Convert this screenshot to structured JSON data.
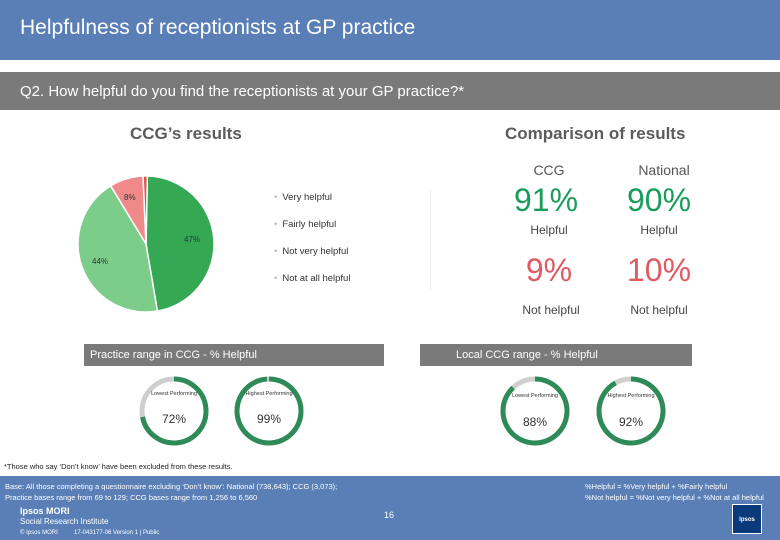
{
  "header": {
    "title": "Helpfulness of receptionists at GP practice",
    "question": "Q2. How helpful do you find the receptionists at your GP practice?*"
  },
  "left_section": {
    "heading": "CCG’s results"
  },
  "right_section": {
    "heading": "Comparison of results",
    "col_ccg": "CCG",
    "col_national": "National",
    "helpful_ccg": "91%",
    "helpful_national": "90%",
    "helpful_label": "Helpful",
    "not_helpful_ccg": "9%",
    "not_helpful_national": "10%",
    "not_helpful_label": "Not helpful"
  },
  "chart_data": {
    "type": "pie",
    "style": "donut",
    "categories": [
      "Very helpful",
      "Fairly helpful",
      "Not very helpful",
      "Not at all helpful"
    ],
    "values": [
      47,
      44,
      8,
      1
    ],
    "slice_labels": [
      "47%",
      "44%",
      "8%",
      ""
    ],
    "colors": [
      "#34a853",
      "#7ccc8a",
      "#f08a8a",
      "#d9534f"
    ],
    "legend_placement": "right"
  },
  "practice_range": {
    "label": "Practice range in CCG - % Helpful",
    "lowest_label": "Lowest Performing",
    "lowest_value": "72%",
    "lowest_fraction": 0.72,
    "highest_label": "Highest Performing",
    "highest_value": "99%",
    "highest_fraction": 0.99
  },
  "local_range": {
    "label": "Local CCG range - % Helpful",
    "lowest_label": "Lowest Performing",
    "lowest_value": "88%",
    "lowest_fraction": 0.88,
    "highest_label": "Highest Performing",
    "highest_value": "92%",
    "highest_fraction": 0.92
  },
  "footer": {
    "footnote": "*Those who say ‘Don’t know’ have been excluded from these results.",
    "base_line1": "Base: All those completing a questionnaire excluding ‘Don’t know’: National (738,643); CCG (3,073);",
    "base_line2": "Practice bases range from 69 to 129; CCG bases range from 1,256 to 6,560",
    "def_line1": "%Helpful = %Very helpful + %Fairly helpful",
    "def_line2": "%Not helpful = %Not very helpful + %Not at all helpful",
    "logo_line1": "Ipsos MORI",
    "logo_line2": "Social Research Institute",
    "copyright": "© Ipsos MORI",
    "reference": "17-043177-06 Version 1 | Public",
    "page_number": "16",
    "ipsos_logo": "Ipsos"
  },
  "colors": {
    "header_blue": "#5a7fb6",
    "bar_grey": "#7a7a7a",
    "helpful_green": "#1a9c5b",
    "not_helpful_red": "#e05a63",
    "ring_green": "#2e8b57",
    "ring_track": "#cfcfcf"
  }
}
